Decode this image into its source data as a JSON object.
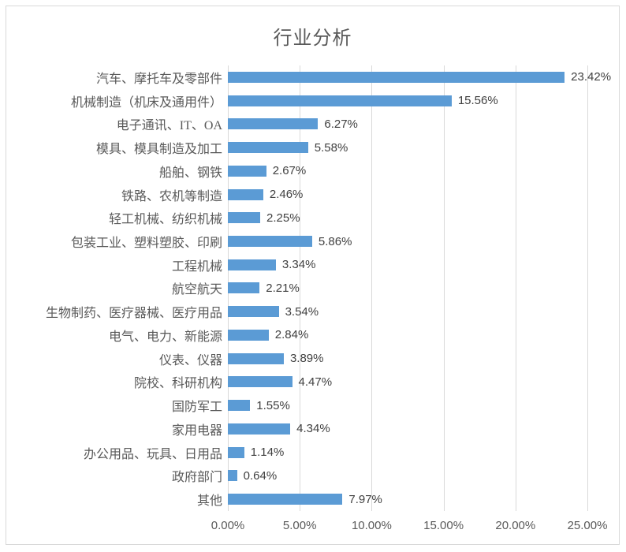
{
  "chart_data": {
    "type": "bar",
    "orientation": "horizontal",
    "title": "行业分析",
    "categories": [
      "汽车、摩托车及零部件",
      "机械制造（机床及通用件）",
      "电子通讯、IT、OA",
      "模具、模具制造及加工",
      "船舶、钢铁",
      "铁路、农机等制造",
      "轻工机械、纺织机械",
      "包装工业、塑料塑胶、印刷",
      "工程机械",
      "航空航天",
      "生物制药、医疗器械、医疗用品",
      "电气、电力、新能源",
      "仪表、仪器",
      "院校、科研机构",
      "国防军工",
      "家用电器",
      "办公用品、玩具、日用品",
      "政府部门",
      "其他"
    ],
    "values": [
      23.42,
      15.56,
      6.27,
      5.58,
      2.67,
      2.46,
      2.25,
      5.86,
      3.34,
      2.21,
      3.54,
      2.84,
      3.89,
      4.47,
      1.55,
      4.34,
      1.14,
      0.64,
      7.97
    ],
    "value_labels": [
      "23.42%",
      "15.56%",
      "6.27%",
      "5.58%",
      "2.67%",
      "2.46%",
      "2.25%",
      "5.86%",
      "3.34%",
      "2.21%",
      "3.54%",
      "2.84%",
      "3.89%",
      "4.47%",
      "1.55%",
      "4.34%",
      "1.14%",
      "0.64%",
      "7.97%"
    ],
    "x_ticks": [
      "0.00%",
      "5.00%",
      "10.00%",
      "15.00%",
      "20.00%",
      "25.00%"
    ],
    "xlim": [
      0,
      25
    ],
    "grid": true,
    "legend_position": "none",
    "bar_color": "#5b9bd5",
    "gridline_color": "#d9d9d9",
    "frame_border_color": "#d9d9d9",
    "title_color": "#595959",
    "category_label_color": "#595959",
    "data_label_color": "#404040",
    "tick_label_color": "#595959"
  }
}
